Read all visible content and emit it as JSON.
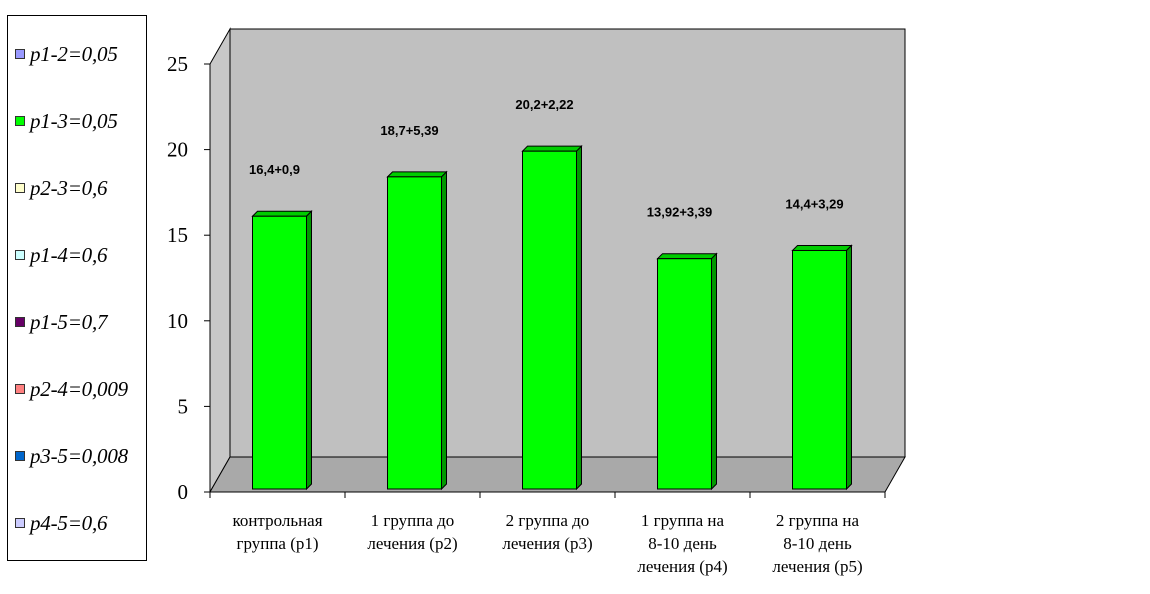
{
  "chart_data": {
    "type": "bar",
    "categories": [
      [
        "контрольная",
        "группа (р1)"
      ],
      [
        "1 группа до",
        "лечения (р2)"
      ],
      [
        "2 группа до",
        "лечения (р3)"
      ],
      [
        "1 группа на",
        "8-10 день",
        "лечения (р4)"
      ],
      [
        "2 группа на",
        "8-10 день",
        "лечения (р5)"
      ]
    ],
    "values": [
      16.4,
      18.7,
      20.2,
      13.92,
      14.4
    ],
    "data_labels": [
      "16,4+0,9",
      "18,7+5,39",
      "20,2+2,22",
      "13,92+3,39",
      "14,4+3,29"
    ],
    "ylim": [
      0,
      25
    ],
    "yticks": [
      0,
      5,
      10,
      15,
      20,
      25
    ],
    "title": "",
    "xlabel": "",
    "ylabel": "",
    "bar_color": "#00ff00",
    "wall_color": "#c0c0c0",
    "grid": false,
    "legend_position": "left",
    "legend": [
      {
        "label": "p1-2=0,05",
        "color": "#9999ff"
      },
      {
        "label": "p1-3=0,05",
        "color": "#00ff00"
      },
      {
        "label": "p2-3=0,6",
        "color": "#ffffcc"
      },
      {
        "label": "p1-4=0,6",
        "color": "#ccffff"
      },
      {
        "label": "p1-5=0,7",
        "color": "#660066"
      },
      {
        "label": "p2-4=0,009",
        "color": "#ff8080"
      },
      {
        "label": "p3-5=0,008",
        "color": "#0066cc"
      },
      {
        "label": "p4-5=0,6",
        "color": "#ccccff"
      }
    ]
  }
}
